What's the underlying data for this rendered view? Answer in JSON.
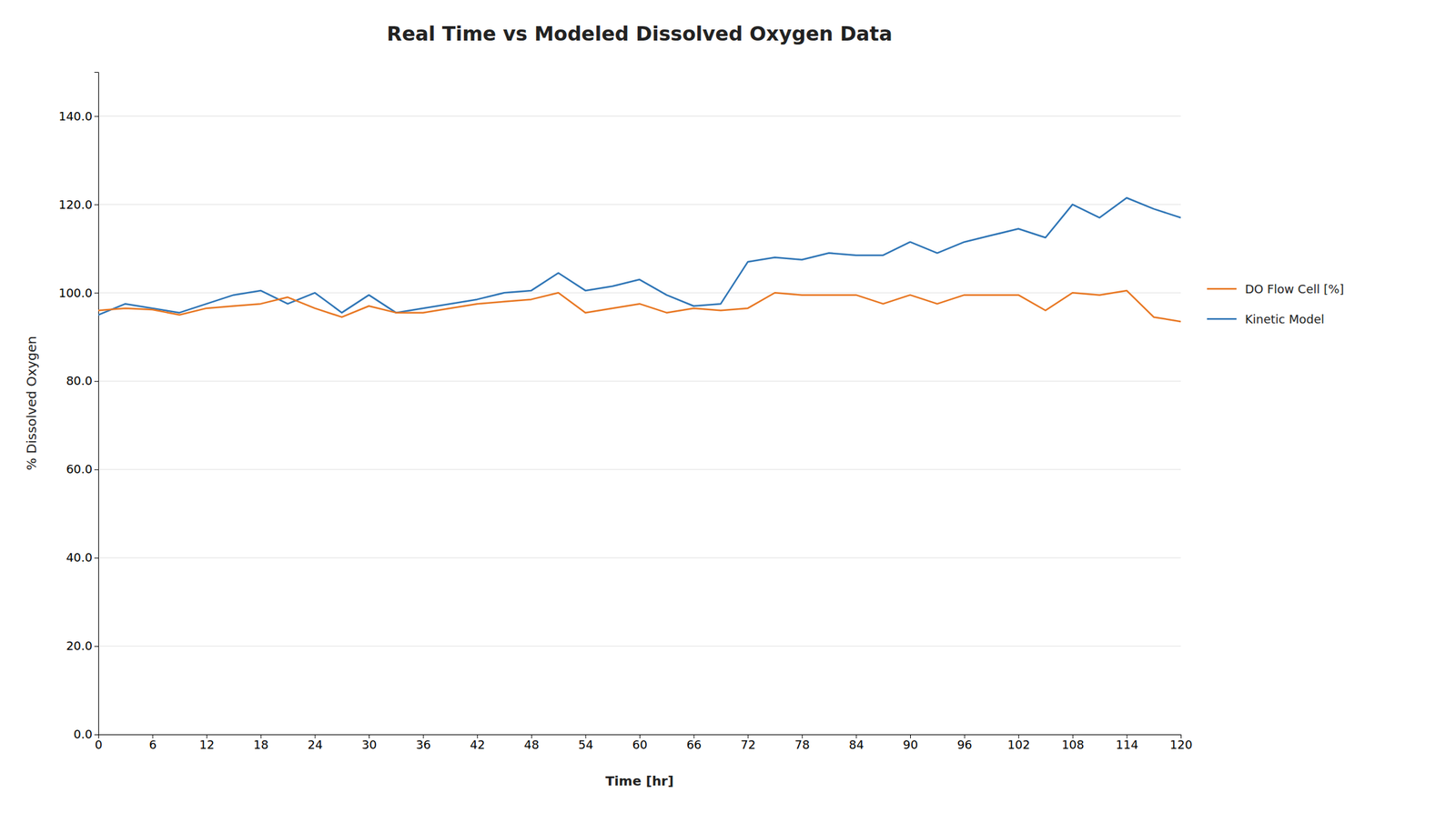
{
  "chart_data": {
    "type": "line",
    "title": "Real Time vs Modeled Dissolved Oxygen Data",
    "xlabel": "Time [hr]",
    "ylabel": "% Dissolved Oxygen",
    "x": [
      0,
      3,
      6,
      9,
      12,
      15,
      18,
      21,
      24,
      27,
      30,
      33,
      36,
      39,
      42,
      45,
      48,
      51,
      54,
      57,
      60,
      63,
      66,
      69,
      72,
      75,
      78,
      81,
      84,
      87,
      90,
      93,
      96,
      99,
      102,
      105,
      108,
      111,
      114,
      117,
      120
    ],
    "series": [
      {
        "name": "DO Flow Cell [%]",
        "color": "#e87722",
        "values": [
          96.0,
          96.5,
          96.2,
          95.0,
          96.5,
          97.0,
          97.5,
          99.0,
          96.5,
          94.5,
          97.0,
          95.5,
          95.5,
          96.5,
          97.5,
          98.0,
          98.5,
          100.0,
          95.5,
          96.5,
          97.5,
          95.5,
          96.5,
          96.0,
          96.5,
          100.0,
          99.5,
          99.5,
          99.5,
          97.5,
          99.5,
          97.5,
          99.5,
          99.5,
          99.5,
          96.0,
          100.0,
          99.5,
          100.5,
          94.5,
          93.5
        ]
      },
      {
        "name": "Kinetic Model",
        "color": "#2e75b6",
        "values": [
          95.0,
          97.5,
          96.5,
          95.5,
          97.5,
          99.5,
          100.5,
          97.5,
          100.0,
          95.5,
          99.5,
          95.5,
          96.5,
          97.5,
          98.5,
          100.0,
          100.5,
          104.5,
          100.5,
          101.5,
          103.0,
          99.5,
          97.0,
          97.5,
          107.0,
          108.0,
          107.5,
          109.0,
          108.5,
          108.5,
          111.5,
          109.0,
          111.5,
          113.0,
          114.5,
          112.5,
          120.0,
          117.0,
          121.5,
          119.0,
          117.0
        ]
      }
    ],
    "xlim": [
      0,
      120
    ],
    "ylim": [
      0.0,
      149.99
    ],
    "xticks": [
      0,
      6,
      12,
      18,
      24,
      30,
      36,
      42,
      48,
      54,
      60,
      66,
      72,
      78,
      84,
      90,
      96,
      102,
      108,
      114,
      120
    ],
    "yticks": [
      {
        "value": 0.0,
        "label": "0.0"
      },
      {
        "value": 20.0,
        "label": "20.0"
      },
      {
        "value": 40.0,
        "label": "40.0"
      },
      {
        "value": 60.0,
        "label": "60.0"
      },
      {
        "value": 80.0,
        "label": "80.0"
      },
      {
        "value": 100.0,
        "label": "100.0"
      },
      {
        "value": 120.0,
        "label": "120.0"
      },
      {
        "value": 140.0,
        "label": "140.0"
      }
    ],
    "grid": "y",
    "legend": "right"
  }
}
